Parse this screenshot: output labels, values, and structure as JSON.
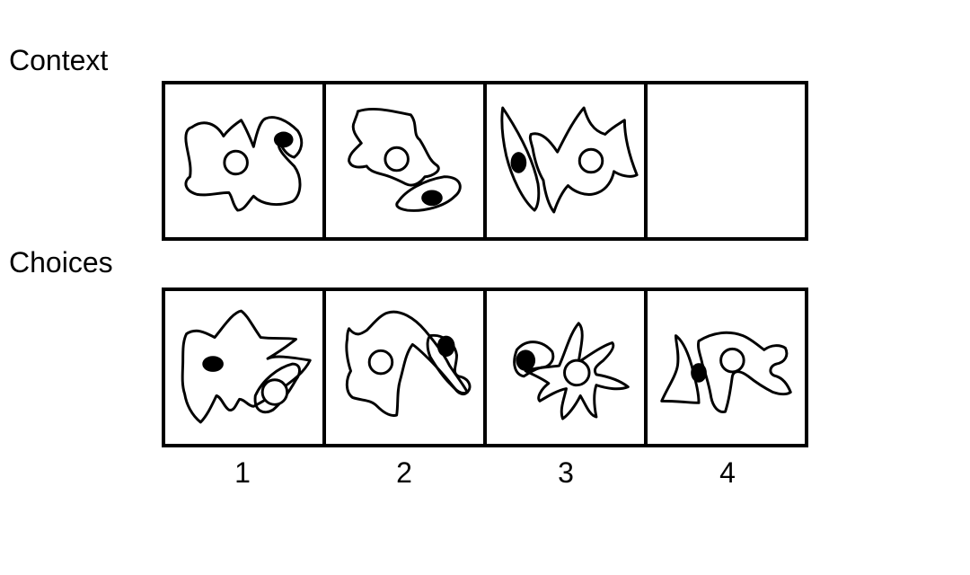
{
  "sections": {
    "context_label": "Context",
    "choices_label": "Choices"
  },
  "context": [
    {
      "panel": 1,
      "icons": [
        "blob-shape",
        "hollow-circle",
        "black-dot"
      ]
    },
    {
      "panel": 2,
      "icons": [
        "blob-shape",
        "hollow-circle",
        "black-dot"
      ]
    },
    {
      "panel": 3,
      "icons": [
        "blob-shape",
        "hollow-circle",
        "black-dot"
      ]
    },
    {
      "panel": 4,
      "icons": []
    }
  ],
  "choices": [
    {
      "number": "1",
      "icons": [
        "blob-shape",
        "hollow-circle",
        "black-dot"
      ]
    },
    {
      "number": "2",
      "icons": [
        "blob-shape",
        "hollow-circle",
        "black-dot"
      ]
    },
    {
      "number": "3",
      "icons": [
        "blob-shape",
        "hollow-circle",
        "black-dot"
      ]
    },
    {
      "number": "4",
      "icons": [
        "blob-shape",
        "hollow-circle",
        "black-dot"
      ]
    }
  ]
}
